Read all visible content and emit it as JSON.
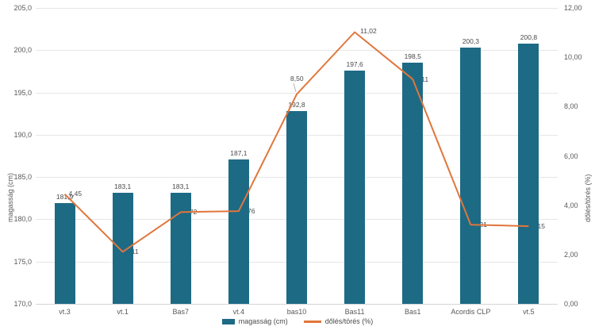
{
  "chart_data": {
    "type": "bar+line combo",
    "categories": [
      "vt.3",
      "vt.1",
      "Bas7",
      "vt.4",
      "bas10",
      "Bas11",
      "Bas1",
      "Acordis CLP",
      "vt.5"
    ],
    "series": [
      {
        "name": "magasság (cm)",
        "type": "bar",
        "axis": "left",
        "color": "#1d6a85",
        "values": [
          181.9,
          183.1,
          183.1,
          187.1,
          192.8,
          197.6,
          198.5,
          200.3,
          200.8
        ],
        "labels": [
          "181,9",
          "183,1",
          "183,1",
          "187,1",
          "192,8",
          "197,6",
          "198,5",
          "200,3",
          "200,8"
        ]
      },
      {
        "name": "dőlés/törés (%)",
        "type": "line",
        "axis": "right",
        "color": "#e0763b",
        "values": [
          4.45,
          2.11,
          3.72,
          3.76,
          8.5,
          11.02,
          9.11,
          3.21,
          3.15
        ],
        "labels": [
          "4,45",
          "2,11",
          "3,72",
          "3,76",
          "8,50",
          "11,02",
          "9,11",
          "3,21",
          "3,15"
        ]
      }
    ],
    "left_axis": {
      "title": "magasság (cm)",
      "min": 170,
      "max": 205,
      "step": 5,
      "tick_values": [
        205,
        200,
        195,
        190,
        185,
        180,
        175,
        170
      ],
      "tick_labels": [
        "205,0",
        "200,0",
        "195,0",
        "190,0",
        "185,0",
        "180,0",
        "175,0",
        "170,0"
      ]
    },
    "right_axis": {
      "title": "dőlés/törés (%)",
      "min": 0,
      "max": 12,
      "step": 2,
      "tick_values": [
        12,
        10,
        8,
        6,
        4,
        2,
        0
      ],
      "tick_labels": [
        "12,00",
        "10,00",
        "8,00",
        "6,00",
        "4,00",
        "2,00",
        "0,00"
      ]
    },
    "legend": [
      "magasság (cm)",
      "dőlés/törés (%)"
    ],
    "grid": "horizontal",
    "legend_position": "bottom"
  }
}
